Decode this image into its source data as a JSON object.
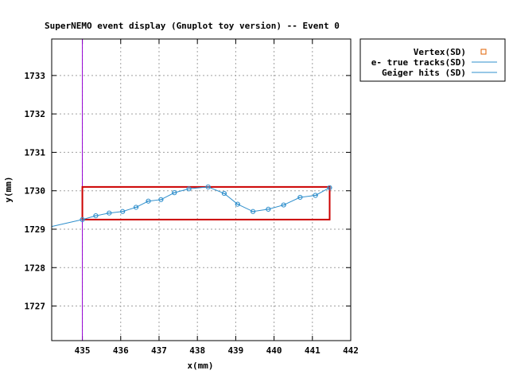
{
  "chart_data": {
    "type": "scatter",
    "title": "SuperNEMO event display (Gnuplot toy version) -- Event 0",
    "xlabel": "x(mm)",
    "ylabel": "y(mm)",
    "xlim": [
      434.2,
      442
    ],
    "ylim": [
      1726.1,
      1733.95
    ],
    "xticks": [
      435,
      436,
      437,
      438,
      439,
      440,
      441,
      442
    ],
    "yticks": [
      1727,
      1728,
      1729,
      1730,
      1731,
      1732,
      1733
    ],
    "grid": true,
    "legend_position": "outside-top-right",
    "legend": [
      {
        "label": "Vertex(SD)",
        "color": "#e06000",
        "marker": "square"
      },
      {
        "label": "e- true tracks(SD)",
        "color": "#2f8fcc",
        "marker": "line"
      },
      {
        "label": "Geiger hits (SD)",
        "color": "#2f8fcc",
        "marker": "line"
      }
    ],
    "series": [
      {
        "type": "line",
        "color": "#2f8fcc",
        "x": [
          434.2,
          435.0
        ],
        "y": [
          1729.07,
          1729.25
        ]
      },
      {
        "type": "line+markers",
        "color": "#2f8fcc",
        "x": [
          435.0,
          435.35,
          435.7,
          436.05,
          436.4,
          436.72,
          437.05,
          437.4,
          437.78,
          438.28,
          438.7,
          439.05,
          439.45,
          439.85,
          440.25,
          440.68,
          441.08,
          441.45
        ],
        "y": [
          1729.25,
          1729.35,
          1729.42,
          1729.46,
          1729.57,
          1729.73,
          1729.77,
          1729.95,
          1730.05,
          1730.1,
          1729.93,
          1729.65,
          1729.46,
          1729.52,
          1729.63,
          1729.83,
          1729.88,
          1730.08
        ]
      }
    ],
    "vertical_line": {
      "x": 435.0,
      "color": "#9400d3"
    },
    "box": {
      "x": [
        435.0,
        441.45
      ],
      "y": [
        1729.25,
        1730.1
      ],
      "color": "#cc0000"
    }
  }
}
